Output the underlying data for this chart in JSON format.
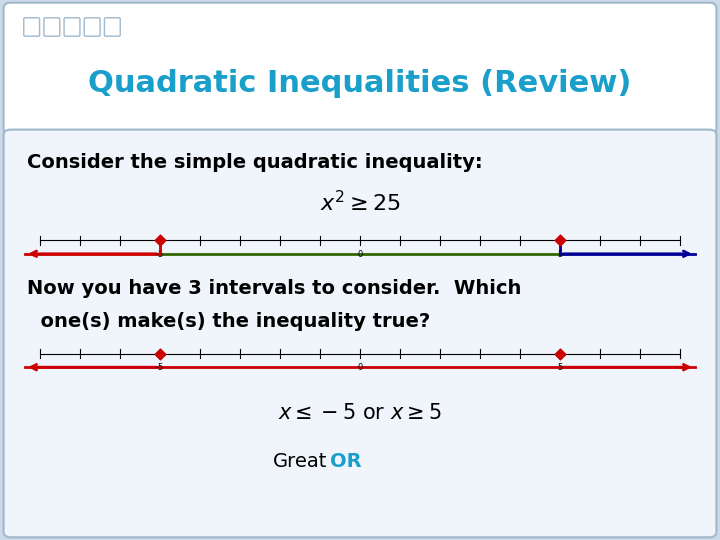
{
  "title": "Quadratic Inequalities (Review)",
  "title_color": "#1a9fca",
  "title_fontsize": 22,
  "slide_bg": "#ccd9e8",
  "title_box_bg": "#ffffff",
  "title_box_border": "#a0b8cc",
  "content_box_bg": "#f0f5fb",
  "content_box_border": "#a0b8cc",
  "icon_color": "#a0b8cc",
  "consider_text": "Consider the simple quadratic inequality:",
  "inequality_label": "$x^2 \\geq 25$",
  "now_text_line1": "Now you have 3 intervals to consider.  Which",
  "now_text_line2": "  one(s) make(s) the inequality true?",
  "solution_label": "$x \\leq -5$ or $x \\geq 5$",
  "greator_black": "Great",
  "greator_colored": "OR",
  "greator_color_hex": "#1a9fca",
  "red_color": "#cc0000",
  "green_color": "#336600",
  "blue_color": "#000099",
  "dot_color": "#cc0000"
}
